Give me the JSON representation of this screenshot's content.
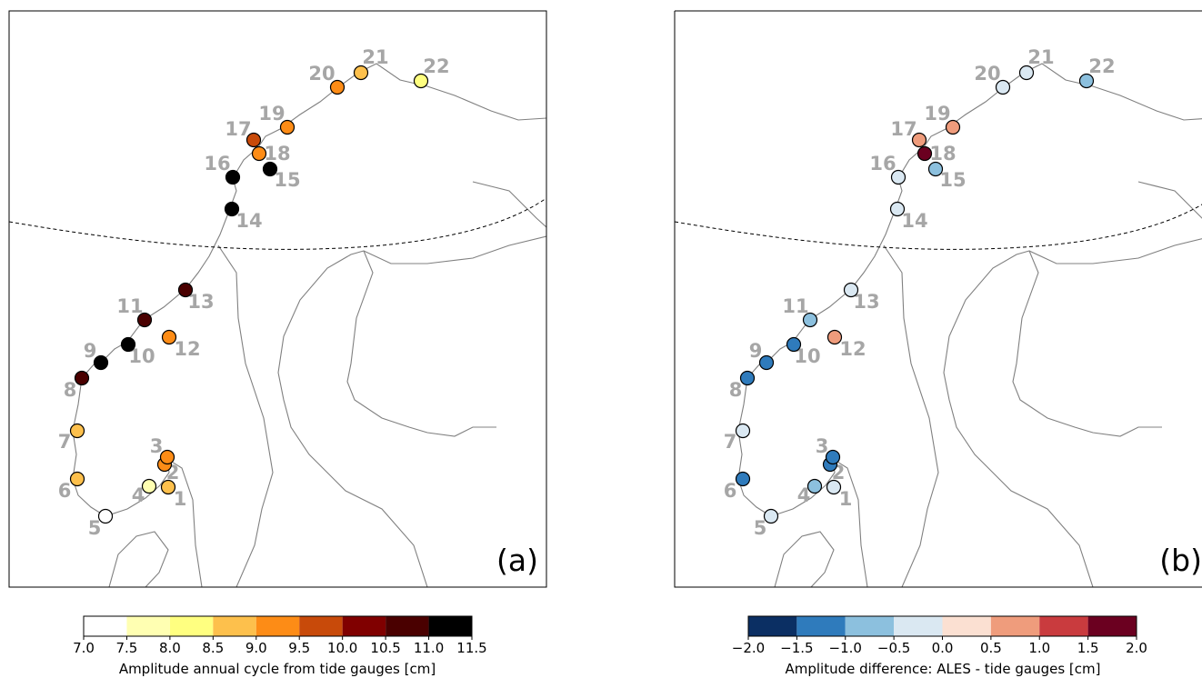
{
  "chart_data": [
    {
      "type": "map",
      "panel_label": "(a)",
      "colorbar": {
        "label": "Amplitude annual cycle from tide gauges [cm]",
        "ticks": [
          "7.0",
          "7.5",
          "8.0",
          "8.5",
          "9.0",
          "9.5",
          "10.0",
          "10.5",
          "11.0",
          "11.5"
        ],
        "colors": [
          "#ffffff",
          "#ffffb2",
          "#ffff80",
          "#fdc04c",
          "#fd8c16",
          "#c84a0a",
          "#800000",
          "#4a0000",
          "#000000"
        ]
      },
      "stations": [
        {
          "id": "1",
          "value": 8.7
        },
        {
          "id": "2",
          "value": 9.3
        },
        {
          "id": "3",
          "value": 9.3
        },
        {
          "id": "4",
          "value": 7.8
        },
        {
          "id": "5",
          "value": 7.2
        },
        {
          "id": "6",
          "value": 8.7
        },
        {
          "id": "7",
          "value": 8.7
        },
        {
          "id": "8",
          "value": 10.8
        },
        {
          "id": "9",
          "value": 11.2
        },
        {
          "id": "10",
          "value": 11.3
        },
        {
          "id": "11",
          "value": 10.8
        },
        {
          "id": "12",
          "value": 9.3
        },
        {
          "id": "13",
          "value": 10.8
        },
        {
          "id": "14",
          "value": 11.3
        },
        {
          "id": "15",
          "value": 11.3
        },
        {
          "id": "16",
          "value": 11.3
        },
        {
          "id": "17",
          "value": 9.8
        },
        {
          "id": "18",
          "value": 9.3
        },
        {
          "id": "19",
          "value": 9.3
        },
        {
          "id": "20",
          "value": 9.3
        },
        {
          "id": "21",
          "value": 8.7
        },
        {
          "id": "22",
          "value": 8.2
        }
      ]
    },
    {
      "type": "map",
      "panel_label": "(b)",
      "colorbar": {
        "label": "Amplitude difference: ALES - tide gauges [cm]",
        "ticks": [
          "−2.0",
          "−1.5",
          "−1.0",
          "−0.5",
          "0.0",
          "0.5",
          "1.0",
          "1.5",
          "2.0"
        ],
        "colors": [
          "#0b2f63",
          "#2f7bbc",
          "#8cc0de",
          "#dae8f2",
          "#fbe0d2",
          "#ef9c7c",
          "#c93b3e",
          "#6b0020"
        ]
      },
      "stations": [
        {
          "id": "1",
          "value": -0.3
        },
        {
          "id": "2",
          "value": -1.2
        },
        {
          "id": "3",
          "value": -1.2
        },
        {
          "id": "4",
          "value": -0.7
        },
        {
          "id": "5",
          "value": -0.3
        },
        {
          "id": "6",
          "value": -1.2
        },
        {
          "id": "7",
          "value": -0.3
        },
        {
          "id": "8",
          "value": -1.2
        },
        {
          "id": "9",
          "value": -1.2
        },
        {
          "id": "10",
          "value": -1.2
        },
        {
          "id": "11",
          "value": -0.7
        },
        {
          "id": "12",
          "value": 0.7
        },
        {
          "id": "13",
          "value": -0.3
        },
        {
          "id": "14",
          "value": -0.3
        },
        {
          "id": "15",
          "value": -0.7
        },
        {
          "id": "16",
          "value": -0.3
        },
        {
          "id": "17",
          "value": 0.7
        },
        {
          "id": "18",
          "value": 1.8
        },
        {
          "id": "19",
          "value": 0.7
        },
        {
          "id": "20",
          "value": -0.3
        },
        {
          "id": "21",
          "value": -0.3
        },
        {
          "id": "22",
          "value": -0.7
        }
      ]
    }
  ]
}
